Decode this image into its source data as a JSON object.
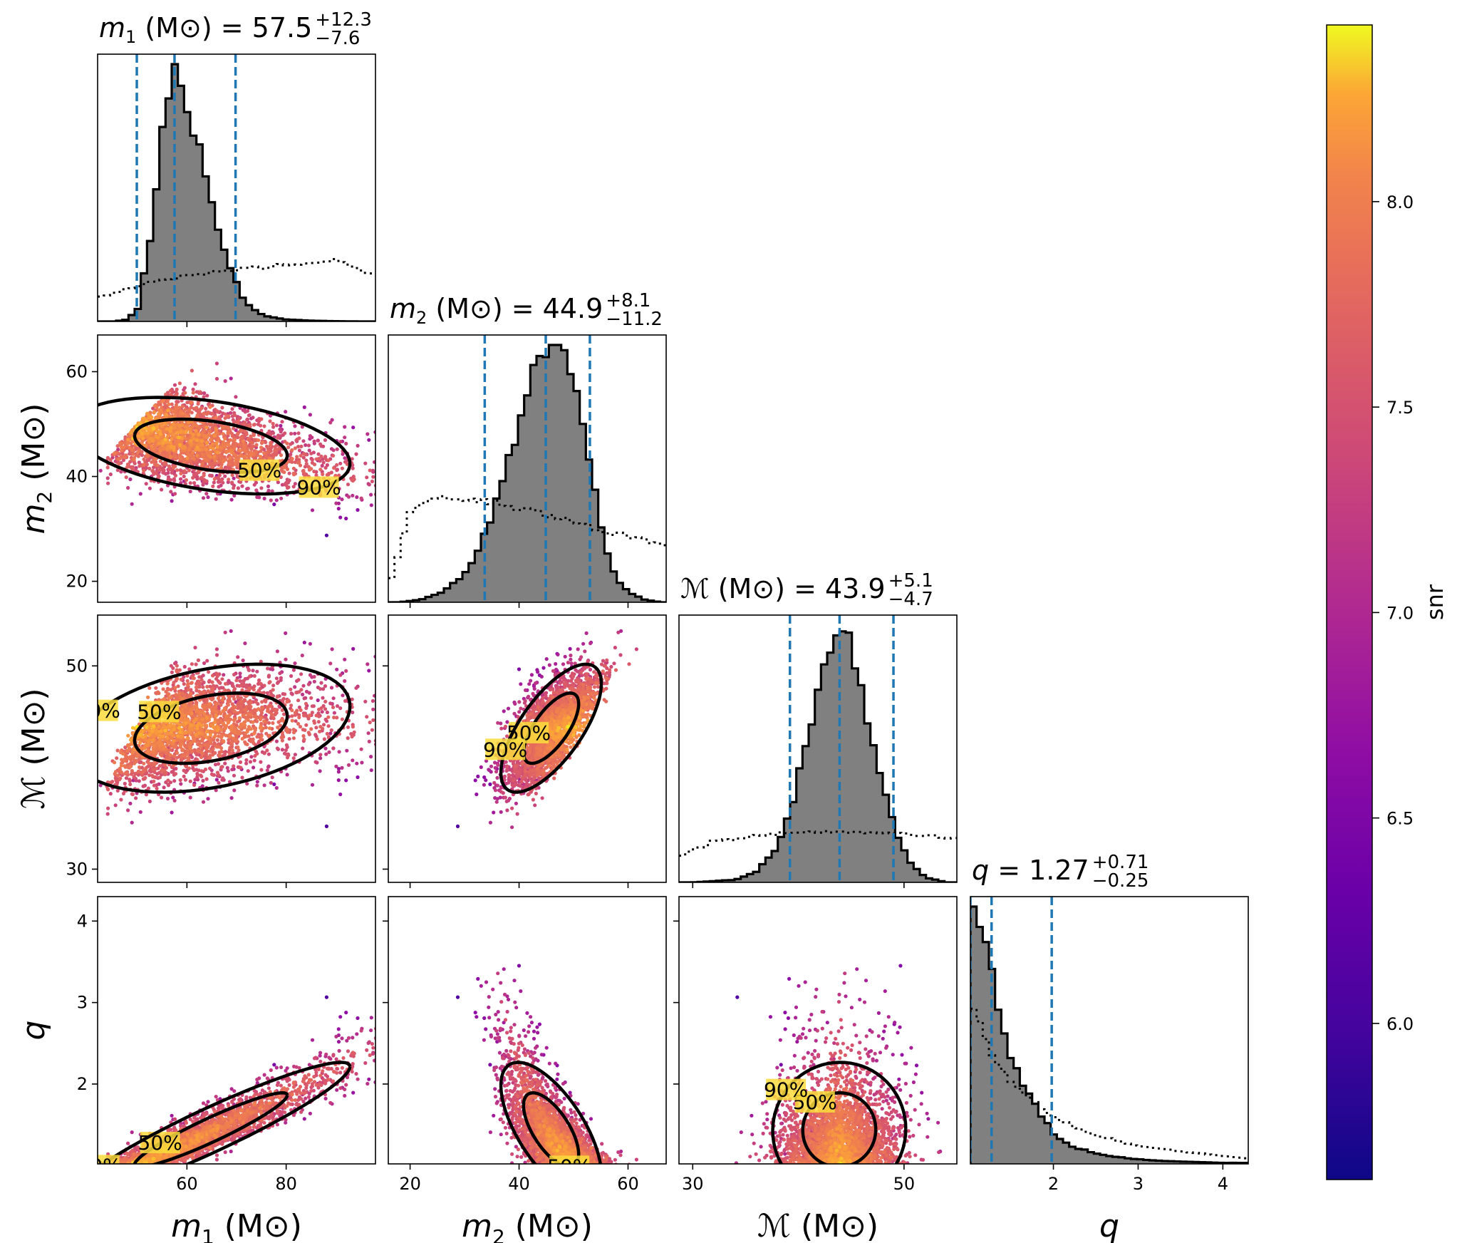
{
  "colors": {
    "hist_fill": "#808080",
    "hist_edge": "#000000",
    "quantile_line": "#1f77b4",
    "prior_line": "#000000",
    "contour": "#000000"
  },
  "colorbar": {
    "label": "snr",
    "colormap": "plasma",
    "range": [
      5.62,
      8.43
    ],
    "ticks": [
      "6.0",
      "6.5",
      "7.0",
      "7.5",
      "8.0"
    ],
    "tick_values": [
      6.0,
      6.5,
      7.0,
      7.5,
      8.0
    ]
  },
  "contour_levels": [
    "50%",
    "90%"
  ],
  "params": [
    {
      "key": "m1",
      "symbol": "m",
      "subscript": "1",
      "unit": "(M⊙)",
      "title_eq": "= 57.5",
      "err_plus": "+12.3",
      "err_minus": "−7.6",
      "range": [
        42,
        98
      ],
      "ticks": [
        60,
        80
      ],
      "median": 57.5,
      "q_lo": 49.9,
      "q_hi": 69.8
    },
    {
      "key": "m2",
      "symbol": "m",
      "subscript": "2",
      "unit": "(M⊙)",
      "title_eq": "= 44.9",
      "err_plus": "+8.1",
      "err_minus": "−11.2",
      "range": [
        16,
        67
      ],
      "ticks": [
        20,
        40,
        60
      ],
      "median": 44.9,
      "q_lo": 33.7,
      "q_hi": 53.0
    },
    {
      "key": "mc",
      "symbol": "ℳ",
      "subscript": "",
      "unit": "(M⊙)",
      "title_eq": "= 43.9",
      "err_plus": "+5.1",
      "err_minus": "−4.7",
      "range": [
        28.7,
        55
      ],
      "ticks": [
        30,
        50
      ],
      "median": 43.9,
      "q_lo": 39.2,
      "q_hi": 49.0
    },
    {
      "key": "q",
      "symbol": "q",
      "subscript": "",
      "unit": "",
      "title_eq": "= 1.27",
      "err_plus": "+0.71",
      "err_minus": "−0.25",
      "range": [
        1.02,
        4.3
      ],
      "ticks": [
        2,
        3,
        4
      ],
      "ticks_y": [
        2,
        3,
        4
      ],
      "median": 1.27,
      "q_lo": 1.02,
      "q_hi": 1.98
    }
  ],
  "chart_data": {
    "type": "corner",
    "parameters": [
      "m1",
      "m2",
      "Mc",
      "q"
    ],
    "units": "Msun",
    "colorbar": {
      "label": "snr",
      "min": 5.62,
      "max": 8.43
    },
    "summary": [
      {
        "param": "m1",
        "median": 57.5,
        "plus": 12.3,
        "minus": 7.6
      },
      {
        "param": "m2",
        "median": 44.9,
        "plus": 8.1,
        "minus": 11.2
      },
      {
        "param": "Mc",
        "median": 43.9,
        "plus": 5.1,
        "minus": 4.7
      },
      {
        "param": "q",
        "median": 1.27,
        "plus": 0.71,
        "minus": 0.25
      }
    ],
    "posterior_hist": {
      "m1": {
        "centers": [
          45,
          47.5,
          50,
          52.5,
          55,
          56,
          57.5,
          59,
          61,
          63,
          65,
          67,
          69,
          71,
          73,
          76,
          80,
          85,
          90,
          95
        ],
        "density": [
          0.0,
          0.005,
          0.04,
          0.3,
          0.72,
          0.88,
          1.0,
          0.92,
          0.78,
          0.62,
          0.46,
          0.32,
          0.2,
          0.1,
          0.05,
          0.02,
          0.008,
          0.003,
          0.001,
          0.0
        ]
      },
      "m2": {
        "centers": [
          18,
          22,
          26,
          30,
          33,
          36,
          39,
          42,
          44,
          46,
          48,
          50,
          52,
          54,
          56,
          58,
          60,
          63,
          66
        ],
        "density": [
          0.0,
          0.01,
          0.04,
          0.11,
          0.22,
          0.4,
          0.62,
          0.85,
          0.96,
          1.0,
          0.97,
          0.86,
          0.68,
          0.42,
          0.2,
          0.09,
          0.04,
          0.01,
          0.0
        ]
      },
      "mc": {
        "centers": [
          30,
          34,
          36,
          38,
          39.5,
          41,
          42.5,
          44,
          45,
          46,
          47.5,
          49,
          50.5,
          52,
          54
        ],
        "density": [
          0.0,
          0.01,
          0.04,
          0.14,
          0.32,
          0.58,
          0.86,
          1.0,
          0.92,
          0.74,
          0.46,
          0.22,
          0.08,
          0.02,
          0.0
        ]
      },
      "q": {
        "centers": [
          1.05,
          1.15,
          1.25,
          1.35,
          1.45,
          1.6,
          1.8,
          2.0,
          2.2,
          2.5,
          2.9,
          3.4,
          4.0
        ],
        "density": [
          1.0,
          0.93,
          0.8,
          0.62,
          0.46,
          0.34,
          0.22,
          0.12,
          0.07,
          0.04,
          0.02,
          0.01,
          0.004
        ]
      }
    },
    "prior_hist": {
      "m1": {
        "centers": [
          42,
          50,
          60,
          70,
          80,
          90,
          98
        ],
        "density": [
          0.09,
          0.14,
          0.18,
          0.2,
          0.22,
          0.24,
          0.18
        ]
      },
      "m2": {
        "centers": [
          16,
          20,
          25,
          35,
          45,
          55,
          67
        ],
        "density": [
          0.05,
          0.35,
          0.42,
          0.39,
          0.34,
          0.28,
          0.22
        ]
      },
      "mc": {
        "centers": [
          28.7,
          32,
          38,
          44,
          50,
          55
        ],
        "density": [
          0.1,
          0.16,
          0.19,
          0.2,
          0.19,
          0.17
        ]
      },
      "q": {
        "centers": [
          1.02,
          1.3,
          1.6,
          2.0,
          2.5,
          3.0,
          3.5,
          4.0,
          4.3
        ],
        "density": [
          0.64,
          0.4,
          0.28,
          0.18,
          0.11,
          0.07,
          0.05,
          0.03,
          0.02
        ]
      }
    },
    "scatter_points_per_panel": 2600
  }
}
